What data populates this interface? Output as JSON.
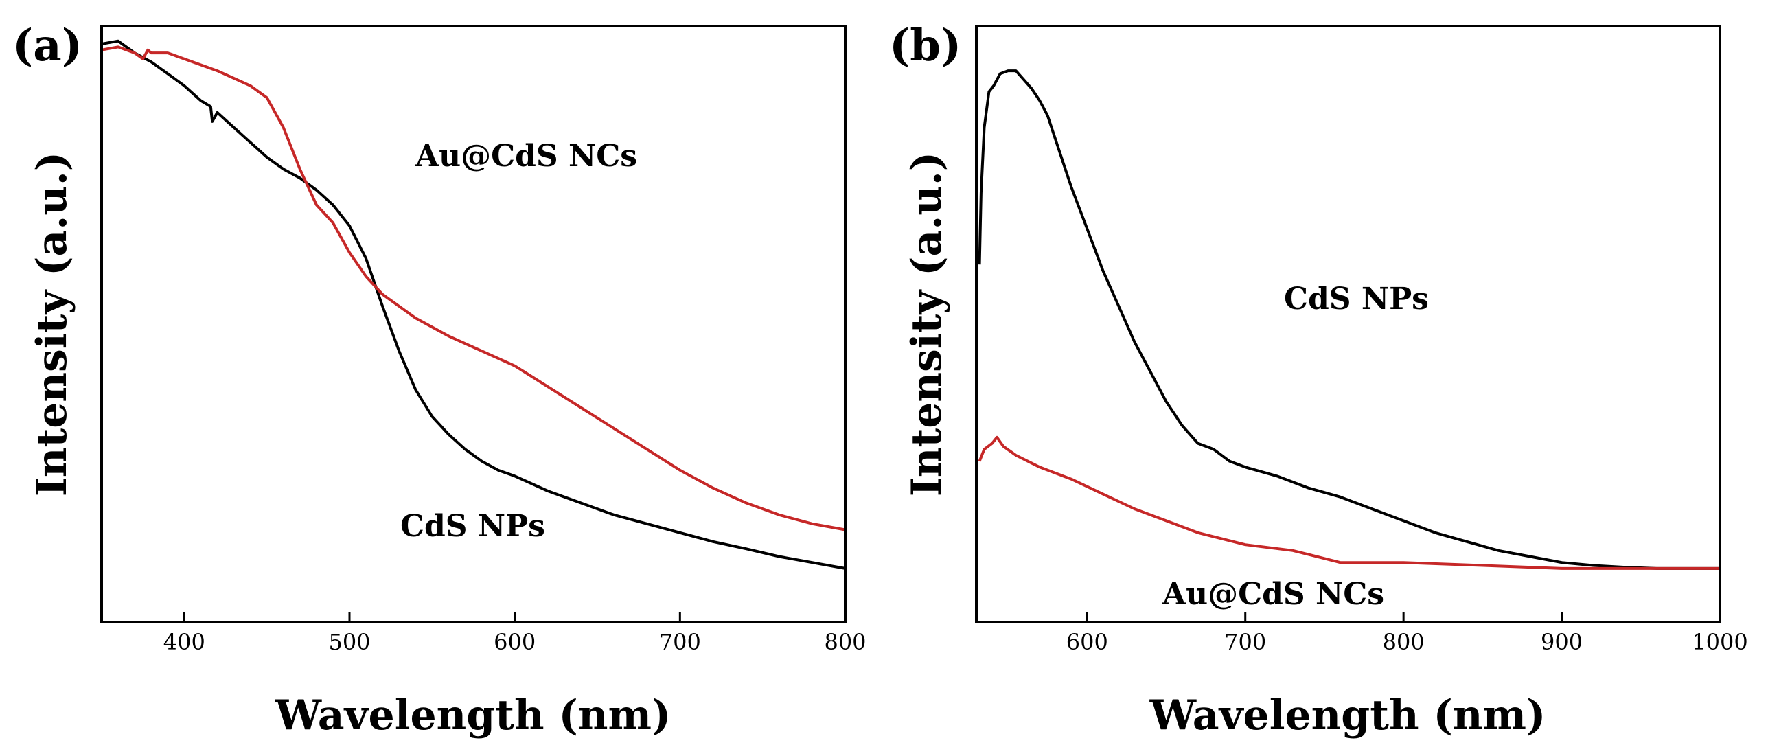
{
  "chart_data": [
    {
      "type": "line",
      "panel_label": "(a)",
      "xlabel": "Wavelength (nm)",
      "ylabel": "Intensity (a.u.)",
      "xlim": [
        350,
        800
      ],
      "ylim": [
        0,
        1
      ],
      "xticks": [
        400,
        500,
        600,
        700,
        800
      ],
      "yticks_shown": false,
      "series": [
        {
          "name": "CdS NPs",
          "color": "#000000",
          "x": [
            350,
            360,
            370,
            380,
            390,
            400,
            410,
            416,
            417,
            420,
            430,
            440,
            450,
            460,
            470,
            480,
            490,
            500,
            510,
            520,
            530,
            540,
            550,
            560,
            570,
            580,
            590,
            600,
            620,
            640,
            660,
            680,
            700,
            720,
            740,
            760,
            780,
            800
          ],
          "y": [
            0.97,
            0.975,
            0.955,
            0.94,
            0.92,
            0.9,
            0.875,
            0.865,
            0.84,
            0.855,
            0.83,
            0.805,
            0.78,
            0.76,
            0.745,
            0.725,
            0.7,
            0.665,
            0.61,
            0.53,
            0.455,
            0.39,
            0.345,
            0.315,
            0.29,
            0.27,
            0.255,
            0.245,
            0.22,
            0.2,
            0.18,
            0.165,
            0.15,
            0.135,
            0.123,
            0.11,
            0.1,
            0.09
          ]
        },
        {
          "name": "Au@CdS NCs",
          "color": "#c62828",
          "x": [
            350,
            360,
            370,
            375,
            378,
            380,
            390,
            400,
            420,
            440,
            450,
            460,
            470,
            480,
            490,
            500,
            510,
            520,
            540,
            560,
            580,
            600,
            620,
            640,
            660,
            680,
            700,
            720,
            740,
            760,
            780,
            800
          ],
          "y": [
            0.96,
            0.965,
            0.955,
            0.945,
            0.96,
            0.955,
            0.955,
            0.945,
            0.925,
            0.9,
            0.88,
            0.83,
            0.76,
            0.7,
            0.67,
            0.62,
            0.58,
            0.55,
            0.51,
            0.48,
            0.455,
            0.43,
            0.395,
            0.36,
            0.325,
            0.29,
            0.255,
            0.225,
            0.2,
            0.18,
            0.165,
            0.155
          ]
        }
      ],
      "annotations": [
        {
          "text": "Au@CdS NCs"
        },
        {
          "text": "CdS NPs"
        }
      ]
    },
    {
      "type": "line",
      "panel_label": "(b)",
      "xlabel": "Wavelength (nm)",
      "ylabel": "Intensity (a.u.)",
      "xlim": [
        530,
        1000
      ],
      "ylim": [
        0,
        1
      ],
      "xticks": [
        600,
        700,
        800,
        900,
        1000
      ],
      "yticks_shown": false,
      "series": [
        {
          "name": "CdS NPs",
          "color": "#000000",
          "x": [
            532,
            533,
            535,
            538,
            541,
            545,
            550,
            555,
            560,
            565,
            570,
            575,
            580,
            585,
            590,
            600,
            610,
            620,
            630,
            640,
            650,
            660,
            670,
            680,
            690,
            700,
            720,
            740,
            760,
            780,
            800,
            820,
            840,
            860,
            880,
            900,
            920,
            940,
            960,
            980,
            1000
          ],
          "y": [
            0.6,
            0.72,
            0.83,
            0.89,
            0.9,
            0.92,
            0.925,
            0.925,
            0.91,
            0.895,
            0.875,
            0.85,
            0.81,
            0.77,
            0.73,
            0.66,
            0.59,
            0.53,
            0.47,
            0.42,
            0.37,
            0.33,
            0.3,
            0.29,
            0.27,
            0.26,
            0.245,
            0.225,
            0.21,
            0.19,
            0.17,
            0.15,
            0.135,
            0.12,
            0.11,
            0.1,
            0.095,
            0.092,
            0.09,
            0.09,
            0.09
          ]
        },
        {
          "name": "Au@CdS NCs",
          "color": "#c62828",
          "x": [
            532,
            535,
            540,
            543,
            547,
            555,
            570,
            590,
            610,
            630,
            650,
            670,
            700,
            730,
            760,
            800,
            850,
            900,
            950,
            1000
          ],
          "y": [
            0.27,
            0.29,
            0.3,
            0.31,
            0.295,
            0.28,
            0.26,
            0.24,
            0.215,
            0.19,
            0.17,
            0.15,
            0.13,
            0.12,
            0.1,
            0.1,
            0.095,
            0.09,
            0.09,
            0.09
          ]
        }
      ],
      "annotations": [
        {
          "text": "CdS NPs"
        },
        {
          "text": "Au@CdS NCs"
        }
      ]
    }
  ]
}
